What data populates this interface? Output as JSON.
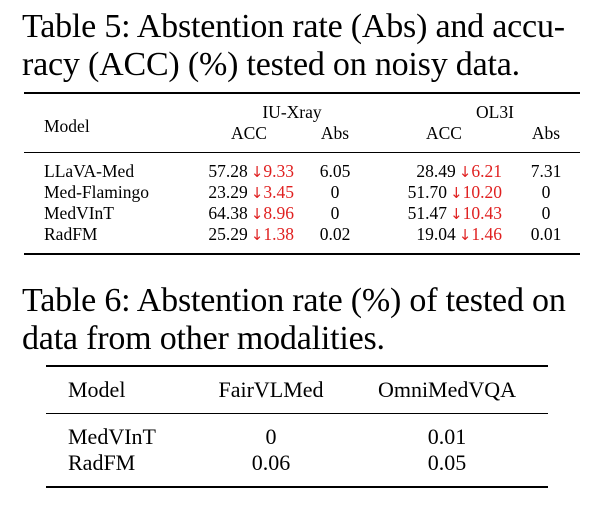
{
  "table5": {
    "caption_lines": [
      "Table 5: Abstention rate (Abs) and accu-",
      "racy (ACC) (%) tested on noisy data."
    ],
    "header": {
      "model": "Model",
      "group1": "IU-Xray",
      "group2": "OL3I",
      "acc": "ACC",
      "abs": "Abs"
    },
    "arrow": "↓",
    "rows": [
      {
        "model": "LLaVA-Med",
        "iu_acc": "57.28",
        "iu_drop": "9.33",
        "iu_abs": "6.05",
        "ol_acc": "28.49",
        "ol_drop": "6.21",
        "ol_abs": "7.31"
      },
      {
        "model": "Med-Flamingo",
        "iu_acc": "23.29",
        "iu_drop": "3.45",
        "iu_abs": "0",
        "ol_acc": "51.70",
        "ol_drop": "10.20",
        "ol_abs": "0"
      },
      {
        "model": "MedVInT",
        "iu_acc": "64.38",
        "iu_drop": "8.96",
        "iu_abs": "0",
        "ol_acc": "51.47",
        "ol_drop": "10.43",
        "ol_abs": "0"
      },
      {
        "model": "RadFM",
        "iu_acc": "25.29",
        "iu_drop": "1.38",
        "iu_abs": "0.02",
        "ol_acc": "19.04",
        "ol_drop": "1.46",
        "ol_abs": "0.01"
      }
    ],
    "drop_color": "#e02020"
  },
  "table6": {
    "caption_lines": [
      "Table 6: Abstention rate (%) of tested on",
      "data from other modalities."
    ],
    "header": {
      "model": "Model",
      "col1": "FairVLMed",
      "col2": "OmniMedVQA"
    },
    "rows": [
      {
        "model": "MedVInT",
        "col1": "0",
        "col2": "0.01"
      },
      {
        "model": "RadFM",
        "col1": "0.06",
        "col2": "0.05"
      }
    ]
  }
}
